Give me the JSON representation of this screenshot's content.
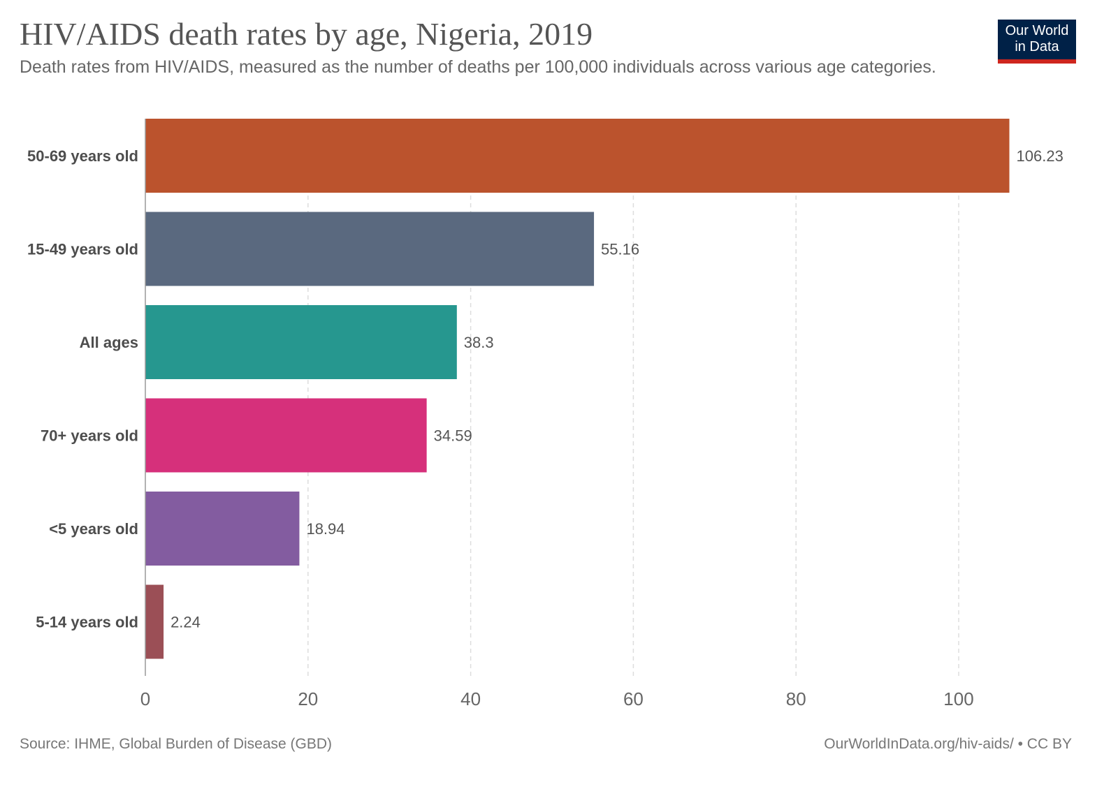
{
  "header": {
    "title": "HIV/AIDS death rates by age, Nigeria, 2019",
    "subtitle": "Death rates from HIV/AIDS, measured as the number of deaths per 100,000 individuals across various age categories."
  },
  "logo": {
    "line1": "Our World",
    "line2": "in Data",
    "bg_color": "#002147",
    "accent_color": "#ce261e"
  },
  "footer": {
    "source": "Source: IHME, Global Burden of Disease (GBD)",
    "credit": "OurWorldInData.org/hiv-aids/ • CC BY"
  },
  "chart_data": {
    "type": "bar",
    "orientation": "horizontal",
    "title": "HIV/AIDS death rates by age, Nigeria, 2019",
    "subtitle": "Death rates from HIV/AIDS, measured as the number of deaths per 100,000 individuals across various age categories.",
    "xlabel": "",
    "ylabel": "",
    "categories": [
      "50-69 years old",
      "15-49 years old",
      "All ages",
      "70+ years old",
      "<5 years old",
      "5-14 years old"
    ],
    "values": [
      106.23,
      55.16,
      38.3,
      34.59,
      18.94,
      2.24
    ],
    "value_labels": [
      "106.23",
      "55.16",
      "38.3",
      "34.59",
      "18.94",
      "2.24"
    ],
    "colors": [
      "#bb532d",
      "#5a697f",
      "#26978f",
      "#d6307b",
      "#835ca0",
      "#9b4f56"
    ],
    "xlim": [
      0,
      106.23
    ],
    "xticks": [
      0,
      20,
      40,
      60,
      80,
      100
    ],
    "xtick_labels": [
      "0",
      "20",
      "40",
      "60",
      "80",
      "100"
    ],
    "grid": "vertical dashed",
    "legend": "none"
  }
}
